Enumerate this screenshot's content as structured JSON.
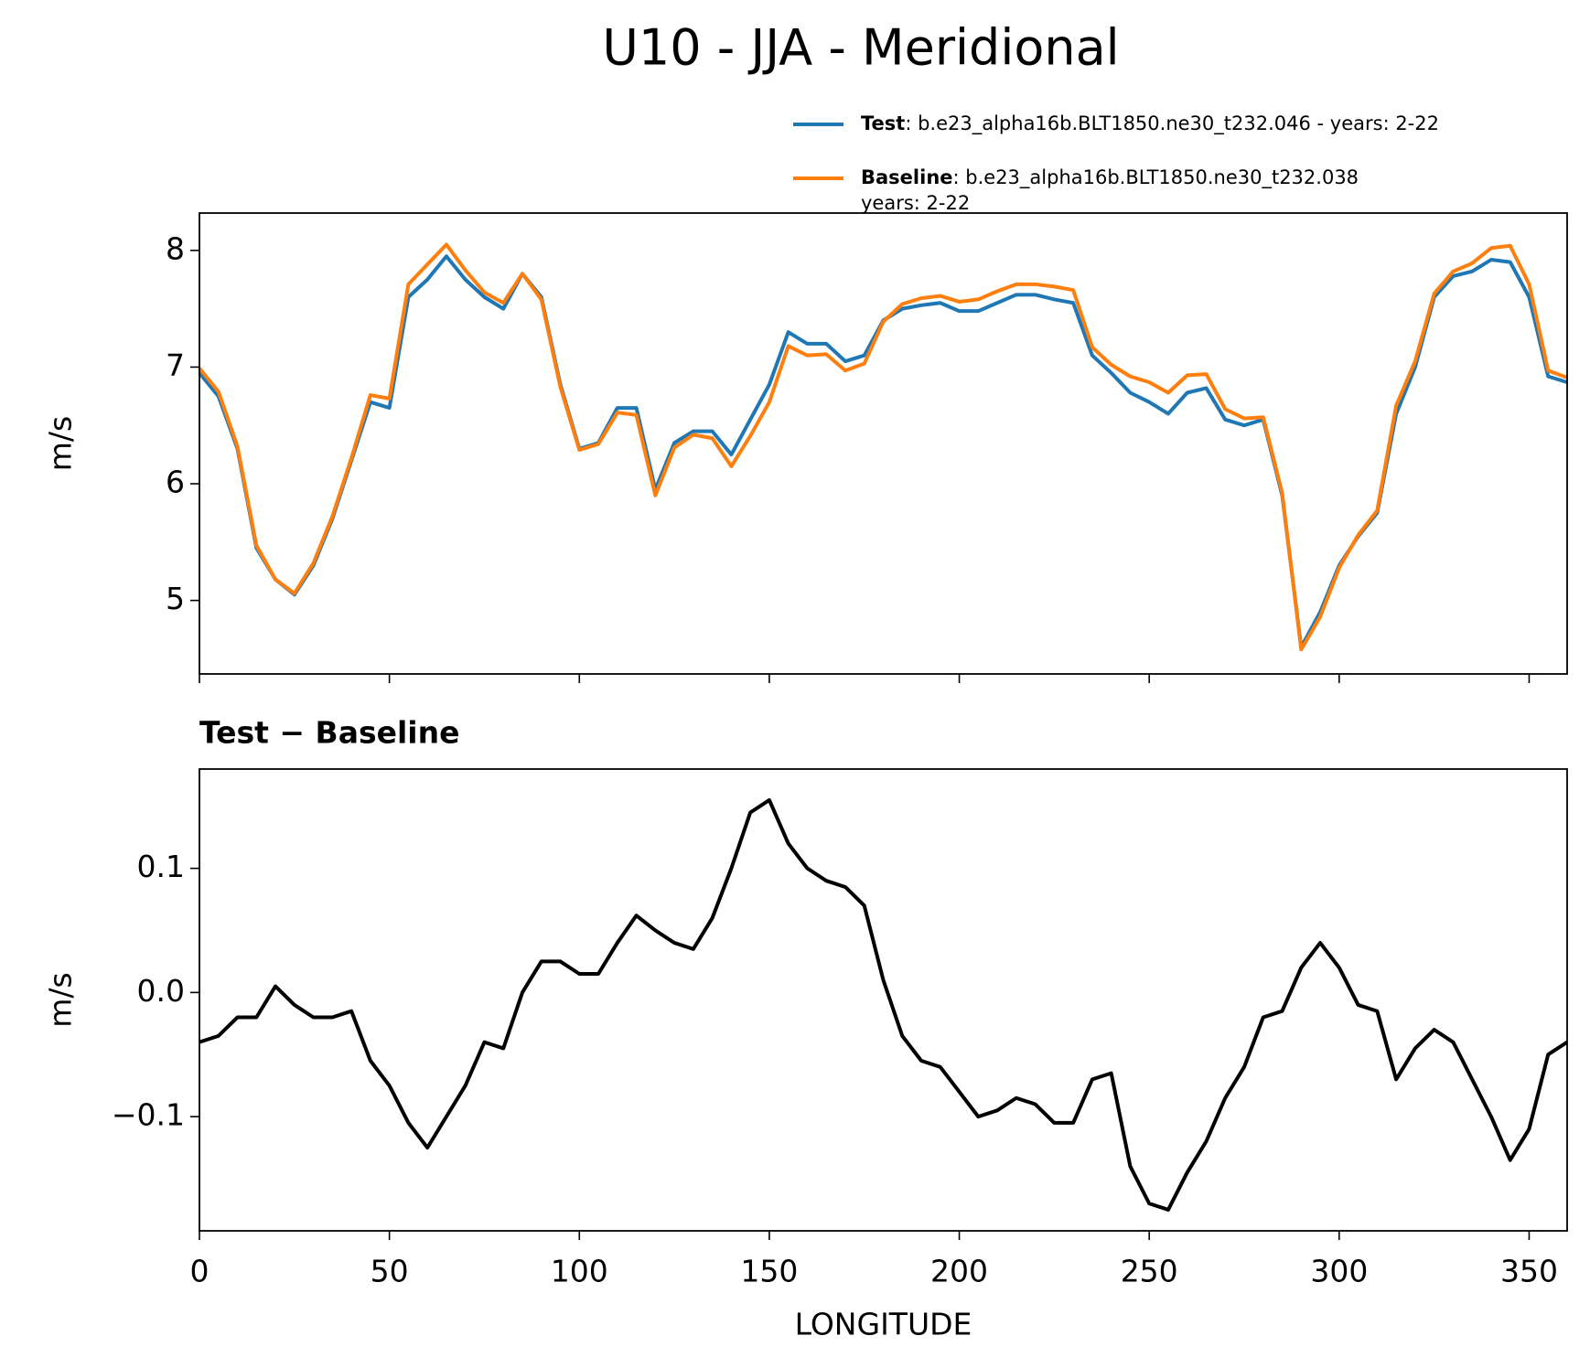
{
  "title": "U10 - JJA - Meridional",
  "chart_data": [
    {
      "type": "line",
      "ylabel": "m/s",
      "x": [
        0,
        5,
        10,
        15,
        20,
        25,
        30,
        35,
        40,
        45,
        50,
        55,
        60,
        65,
        70,
        75,
        80,
        85,
        90,
        95,
        100,
        105,
        110,
        115,
        120,
        125,
        130,
        135,
        140,
        145,
        150,
        155,
        160,
        165,
        170,
        175,
        180,
        185,
        190,
        195,
        200,
        205,
        210,
        215,
        220,
        225,
        230,
        235,
        240,
        245,
        250,
        255,
        260,
        265,
        270,
        275,
        280,
        285,
        290,
        295,
        300,
        305,
        310,
        315,
        320,
        325,
        330,
        335,
        340,
        345,
        350,
        355,
        360
      ],
      "series": [
        {
          "name": "Test",
          "detail": [
            ": b.e23_alpha16b.BLT1850.ne30_t232.046 - years: 2-22"
          ],
          "color": "#1f77b4",
          "values": [
            6.95,
            6.75,
            6.3,
            5.45,
            5.18,
            5.05,
            5.3,
            5.7,
            6.2,
            6.7,
            6.65,
            7.6,
            7.75,
            7.95,
            7.75,
            7.6,
            7.5,
            7.8,
            7.6,
            6.85,
            6.3,
            6.35,
            6.65,
            6.65,
            5.95,
            6.35,
            6.45,
            6.45,
            6.25,
            6.55,
            6.85,
            7.3,
            7.2,
            7.2,
            7.05,
            7.1,
            7.4,
            7.5,
            7.53,
            7.55,
            7.48,
            7.48,
            7.55,
            7.62,
            7.62,
            7.58,
            7.55,
            7.1,
            6.95,
            6.78,
            6.7,
            6.6,
            6.78,
            6.82,
            6.55,
            6.5,
            6.55,
            5.9,
            4.6,
            4.9,
            5.3,
            5.55,
            5.75,
            6.6,
            7.0,
            7.6,
            7.78,
            7.82,
            7.92,
            7.9,
            7.6,
            6.92,
            6.87
          ]
        },
        {
          "name": "Baseline",
          "detail": [
            ": b.e23_alpha16b.BLT1850.ne30_t232.038",
            "years: 2-22"
          ],
          "color": "#ff7f0e",
          "values": [
            6.99,
            6.79,
            6.32,
            5.47,
            5.18,
            5.06,
            5.32,
            5.72,
            6.22,
            6.76,
            6.73,
            7.71,
            7.88,
            8.05,
            7.83,
            7.64,
            7.55,
            7.8,
            7.58,
            6.83,
            6.29,
            6.34,
            6.61,
            6.59,
            5.9,
            6.31,
            6.42,
            6.39,
            6.15,
            6.41,
            6.7,
            7.18,
            7.1,
            7.11,
            6.97,
            7.03,
            7.39,
            7.54,
            7.59,
            7.61,
            7.56,
            7.58,
            7.65,
            7.71,
            7.71,
            7.69,
            7.66,
            7.17,
            7.02,
            6.92,
            6.87,
            6.78,
            6.93,
            6.94,
            6.64,
            6.56,
            6.57,
            5.92,
            4.58,
            4.86,
            5.28,
            5.56,
            5.77,
            6.67,
            7.05,
            7.63,
            7.82,
            7.89,
            8.02,
            8.04,
            7.71,
            6.97,
            6.91
          ]
        }
      ],
      "xlim": [
        0,
        360
      ],
      "ylim": [
        4.37,
        8.32
      ],
      "xticks": [
        0,
        50,
        100,
        150,
        200,
        250,
        300,
        350
      ],
      "xticklabels": false,
      "yticks": [
        5,
        6,
        7,
        8
      ]
    },
    {
      "type": "line",
      "title": "Test − Baseline",
      "xlabel": "LONGITUDE",
      "ylabel": "m/s",
      "x": [
        0,
        5,
        10,
        15,
        20,
        25,
        30,
        35,
        40,
        45,
        50,
        55,
        60,
        65,
        70,
        75,
        80,
        85,
        90,
        95,
        100,
        105,
        110,
        115,
        120,
        125,
        130,
        135,
        140,
        145,
        150,
        155,
        160,
        165,
        170,
        175,
        180,
        185,
        190,
        195,
        200,
        205,
        210,
        215,
        220,
        225,
        230,
        235,
        240,
        245,
        250,
        255,
        260,
        265,
        270,
        275,
        280,
        285,
        290,
        295,
        300,
        305,
        310,
        315,
        320,
        325,
        330,
        335,
        340,
        345,
        350,
        355,
        360
      ],
      "series": [
        {
          "color": "#000000",
          "values": [
            -0.04,
            -0.035,
            -0.02,
            -0.02,
            0.005,
            -0.01,
            -0.02,
            -0.02,
            -0.015,
            -0.055,
            -0.075,
            -0.105,
            -0.125,
            -0.1,
            -0.075,
            -0.04,
            -0.045,
            0.0,
            0.025,
            0.025,
            0.015,
            0.015,
            0.04,
            0.062,
            0.05,
            0.04,
            0.035,
            0.06,
            0.1,
            0.145,
            0.155,
            0.12,
            0.1,
            0.09,
            0.085,
            0.07,
            0.01,
            -0.035,
            -0.055,
            -0.06,
            -0.08,
            -0.1,
            -0.095,
            -0.085,
            -0.09,
            -0.105,
            -0.105,
            -0.07,
            -0.065,
            -0.14,
            -0.17,
            -0.175,
            -0.145,
            -0.12,
            -0.085,
            -0.06,
            -0.02,
            -0.015,
            0.02,
            0.04,
            0.02,
            -0.01,
            -0.015,
            -0.07,
            -0.045,
            -0.03,
            -0.04,
            -0.07,
            -0.1,
            -0.135,
            -0.11,
            -0.05,
            -0.04
          ]
        }
      ],
      "xlim": [
        0,
        360
      ],
      "ylim": [
        -0.192,
        0.18
      ],
      "xticks": [
        0,
        50,
        100,
        150,
        200,
        250,
        300,
        350
      ],
      "xticklabels": true,
      "yticks": [
        0.1,
        {
          "value": 0,
          "label": "0.0"
        },
        {
          "value": -0.1,
          "label": "−0.1"
        }
      ]
    }
  ]
}
